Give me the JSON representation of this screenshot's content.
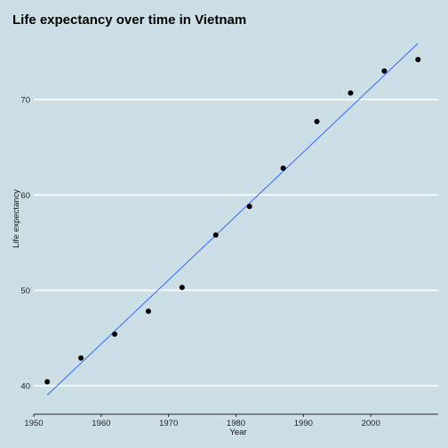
{
  "chart_data": {
    "type": "scatter",
    "title": "Life expectancy over time in Vietnam",
    "xlabel": "Year",
    "ylabel": "Life expectancy",
    "xlim": [
      1950,
      2010
    ],
    "ylim": [
      37,
      77
    ],
    "x_ticks": [
      1950,
      1960,
      1970,
      1980,
      1990,
      2000
    ],
    "y_ticks": [
      40,
      50,
      60,
      70
    ],
    "grid": "horizontal",
    "colors": {
      "background": "#cddfe6",
      "grid": "#ffffff",
      "points": "#000000",
      "trend": "#3366ff"
    },
    "series": [
      {
        "points": [
          {
            "x": 1952,
            "y": 40.4
          },
          {
            "x": 1957,
            "y": 42.9
          },
          {
            "x": 1962,
            "y": 45.4
          },
          {
            "x": 1967,
            "y": 47.8
          },
          {
            "x": 1972,
            "y": 50.3
          },
          {
            "x": 1977,
            "y": 55.8
          },
          {
            "x": 1982,
            "y": 58.8
          },
          {
            "x": 1987,
            "y": 62.8
          },
          {
            "x": 1992,
            "y": 67.7
          },
          {
            "x": 1997,
            "y": 70.7
          },
          {
            "x": 2002,
            "y": 73.0
          },
          {
            "x": 2007,
            "y": 74.2
          }
        ]
      }
    ],
    "trend_line": {
      "x": [
        1952,
        2007
      ],
      "y": [
        39.0,
        75.9
      ]
    }
  }
}
